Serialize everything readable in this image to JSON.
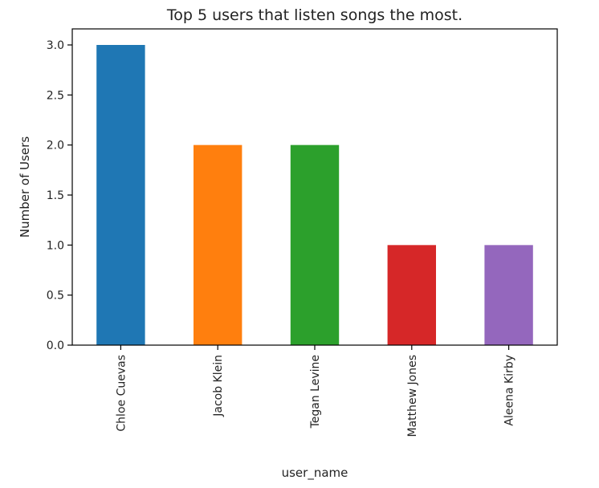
{
  "chart_data": {
    "type": "bar",
    "title": "Top 5 users that listen songs the most.",
    "xlabel": "user_name",
    "ylabel": "Number of Users",
    "categories": [
      "Chloe Cuevas",
      "Jacob Klein",
      "Tegan Levine",
      "Matthew Jones",
      "Aleena Kirby"
    ],
    "values": [
      3,
      2,
      2,
      1,
      1
    ],
    "colors": [
      "#1f77b4",
      "#ff7f0e",
      "#2ca02c",
      "#d62728",
      "#9467bd"
    ],
    "ylim": [
      0,
      3.0
    ],
    "yticks": [
      "0.0",
      "0.5",
      "1.0",
      "1.5",
      "2.0",
      "2.5",
      "3.0"
    ],
    "grid": false,
    "legend": "none"
  }
}
